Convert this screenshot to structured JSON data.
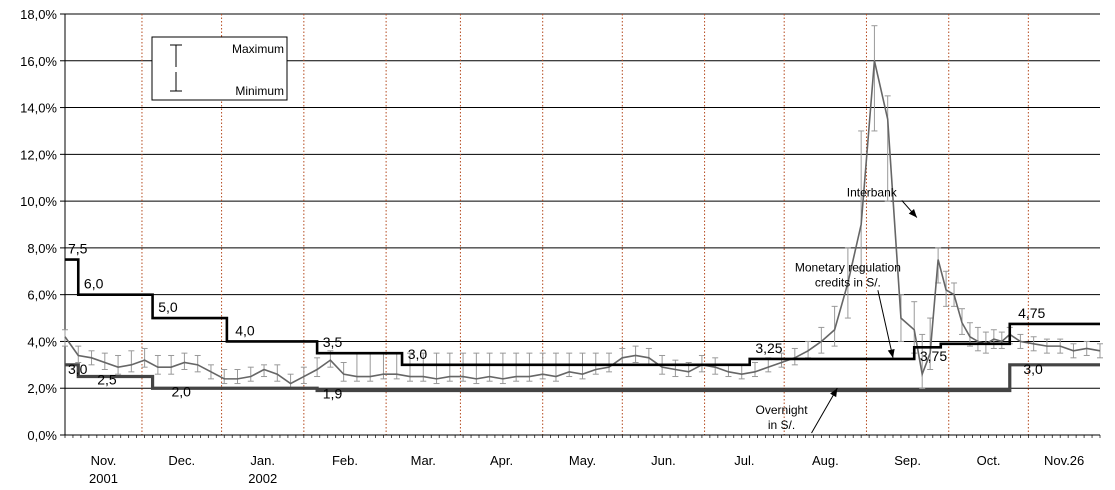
{
  "chart_data": {
    "type": "line",
    "ylim": [
      0,
      18
    ],
    "yticks": [
      0,
      2,
      4,
      6,
      8,
      10,
      12,
      14,
      16,
      18
    ],
    "ytick_labels": [
      "0,0%",
      "2,0%",
      "4,0%",
      "6,0%",
      "8,0%",
      "10,0%",
      "12,0%",
      "14,0%",
      "16,0%",
      "18,0%"
    ],
    "xlim": [
      0,
      390
    ],
    "grid": true,
    "months": [
      {
        "label": "Nov.",
        "sub": "2001"
      },
      {
        "label": "Dec.",
        "sub": ""
      },
      {
        "label": "Jan.",
        "sub": "2002"
      },
      {
        "label": "Feb.",
        "sub": ""
      },
      {
        "label": "Mar.",
        "sub": ""
      },
      {
        "label": "Apr.",
        "sub": ""
      },
      {
        "label": "May.",
        "sub": ""
      },
      {
        "label": "Jun.",
        "sub": ""
      },
      {
        "label": "Jul.",
        "sub": ""
      },
      {
        "label": "Aug.",
        "sub": ""
      },
      {
        "label": "Sep.",
        "sub": ""
      },
      {
        "label": "Oct.",
        "sub": ""
      },
      {
        "label": "Nov.26",
        "sub": ""
      }
    ],
    "month_boundaries": [
      29,
      59,
      90,
      121,
      149,
      180,
      210,
      241,
      271,
      302,
      333,
      363
    ],
    "legend": {
      "max_label": "Maximum",
      "min_label": "Minimum",
      "placement": "top-left"
    },
    "series": [
      {
        "name": "Monetary regulation credits in S/.",
        "style": "step",
        "x": [
          0,
          5,
          33,
          61,
          95,
          127,
          258,
          320,
          330,
          356,
          390
        ],
        "y": [
          7.5,
          6.0,
          5.0,
          4.0,
          3.5,
          3.0,
          3.25,
          3.75,
          3.9,
          4.75,
          4.75
        ]
      },
      {
        "name": "Overnight in S/.",
        "style": "step",
        "x": [
          0,
          5,
          33,
          95,
          127,
          355,
          356,
          390
        ],
        "y": [
          3.0,
          2.5,
          2.0,
          1.9,
          1.9,
          1.9,
          3.0,
          3.0
        ]
      },
      {
        "name": "Interbank",
        "style": "range",
        "x": [
          0,
          5,
          10,
          15,
          20,
          25,
          30,
          35,
          40,
          45,
          50,
          55,
          60,
          65,
          70,
          75,
          80,
          85,
          90,
          95,
          100,
          105,
          110,
          115,
          120,
          125,
          130,
          135,
          140,
          145,
          150,
          155,
          160,
          165,
          170,
          175,
          180,
          185,
          190,
          195,
          200,
          205,
          210,
          215,
          220,
          225,
          230,
          235,
          240,
          245,
          250,
          255,
          260,
          265,
          270,
          275,
          280,
          285,
          290,
          295,
          300,
          305,
          310,
          315,
          320,
          323,
          326,
          329,
          332,
          335,
          338,
          341,
          344,
          347,
          350,
          353,
          356,
          360,
          365,
          370,
          375,
          380,
          385,
          390
        ],
        "y": [
          4.2,
          3.4,
          3.3,
          3.1,
          2.9,
          3.0,
          3.2,
          2.9,
          2.9,
          3.1,
          3.0,
          2.7,
          2.4,
          2.4,
          2.5,
          2.8,
          2.6,
          2.2,
          2.5,
          2.8,
          3.2,
          2.6,
          2.5,
          2.5,
          2.6,
          2.6,
          2.5,
          2.5,
          2.4,
          2.5,
          2.5,
          2.4,
          2.5,
          2.4,
          2.5,
          2.5,
          2.6,
          2.5,
          2.7,
          2.6,
          2.8,
          2.9,
          3.3,
          3.4,
          3.3,
          2.9,
          2.8,
          2.7,
          3.0,
          2.9,
          2.7,
          2.6,
          2.7,
          2.9,
          3.1,
          3.3,
          3.6,
          4.0,
          4.5,
          6.5,
          9.0,
          16.0,
          13.5,
          5.0,
          4.5,
          2.6,
          3.5,
          7.5,
          6.2,
          6.0,
          4.8,
          4.2,
          4.0,
          3.9,
          4.1,
          4.0,
          4.3,
          4.0,
          3.9,
          3.8,
          3.8,
          3.6,
          3.7,
          3.6
        ],
        "max": [
          4.5,
          3.8,
          3.6,
          3.5,
          3.4,
          3.6,
          3.7,
          3.4,
          3.4,
          3.5,
          3.4,
          3.0,
          2.8,
          2.8,
          2.9,
          3.0,
          3.0,
          2.6,
          2.9,
          3.3,
          3.6,
          3.1,
          3.5,
          3.5,
          3.5,
          3.5,
          3.5,
          3.5,
          3.5,
          3.5,
          3.5,
          3.5,
          3.5,
          3.5,
          3.5,
          3.5,
          3.5,
          3.5,
          3.5,
          3.5,
          3.5,
          3.5,
          3.7,
          3.8,
          3.7,
          3.4,
          3.2,
          3.1,
          3.4,
          3.3,
          3.0,
          3.0,
          3.1,
          3.3,
          3.5,
          3.7,
          4.0,
          4.6,
          5.5,
          8.0,
          13.0,
          17.5,
          14.5,
          6.0,
          5.7,
          4.3,
          5.0,
          8.0,
          7.0,
          6.5,
          5.4,
          4.8,
          4.6,
          4.4,
          4.5,
          4.4,
          4.6,
          4.3,
          4.2,
          4.1,
          4.1,
          3.9,
          4.0,
          3.9
        ],
        "min": [
          3.8,
          3.1,
          3.0,
          2.8,
          2.6,
          2.7,
          2.9,
          2.6,
          2.6,
          2.8,
          2.7,
          2.4,
          2.2,
          2.2,
          2.3,
          2.5,
          2.3,
          2.0,
          2.2,
          2.5,
          2.9,
          2.3,
          2.3,
          2.3,
          2.4,
          2.4,
          2.3,
          2.3,
          2.2,
          2.3,
          2.3,
          2.2,
          2.3,
          2.2,
          2.3,
          2.3,
          2.4,
          2.3,
          2.5,
          2.4,
          2.6,
          2.7,
          3.0,
          3.1,
          3.0,
          2.6,
          2.5,
          2.5,
          2.7,
          2.6,
          2.5,
          2.4,
          2.5,
          2.7,
          2.9,
          3.0,
          3.3,
          3.5,
          3.8,
          5.0,
          7.0,
          13.0,
          10.0,
          4.0,
          3.5,
          2.0,
          2.8,
          6.5,
          5.5,
          5.5,
          4.3,
          3.8,
          3.6,
          3.5,
          3.7,
          3.7,
          3.9,
          3.7,
          3.6,
          3.5,
          3.5,
          3.3,
          3.4,
          3.3
        ]
      }
    ],
    "step_labels": [
      {
        "text": "7,5",
        "x": 0,
        "y": 7.5
      },
      {
        "text": "6,0",
        "x": 6,
        "y": 6.0
      },
      {
        "text": "5,0",
        "x": 34,
        "y": 5.0
      },
      {
        "text": "4,0",
        "x": 63,
        "y": 4.0
      },
      {
        "text": "3,5",
        "x": 96,
        "y": 3.5
      },
      {
        "text": "3,0",
        "x": 128,
        "y": 3.0
      },
      {
        "text": "3,25",
        "x": 259,
        "y": 3.25
      },
      {
        "text": "3,75",
        "x": 321,
        "y": 2.9
      },
      {
        "text": "4,75",
        "x": 358,
        "y": 4.75
      },
      {
        "text": "3,0",
        "x": 0,
        "y": 2.35
      },
      {
        "text": "2,5",
        "x": 11,
        "y": 1.9
      },
      {
        "text": "2,0",
        "x": 39,
        "y": 1.4
      },
      {
        "text": "1,9",
        "x": 96,
        "y": 1.3
      },
      {
        "text": "3,0",
        "x": 360,
        "y": 2.35
      }
    ],
    "annotations": [
      {
        "lines": [
          "Interbank"
        ],
        "x": 304,
        "y": 10.2,
        "arrow_to": [
          321,
          9.3
        ]
      },
      {
        "lines": [
          "Monetary regulation",
          "credits in S/."
        ],
        "x": 295,
        "y": 7.0,
        "arrow_to": [
          312,
          3.3
        ]
      },
      {
        "lines": [
          "Overnight",
          "in S/."
        ],
        "x": 270,
        "y": 0.9,
        "arrow_to": [
          291,
          2.0
        ]
      }
    ]
  }
}
